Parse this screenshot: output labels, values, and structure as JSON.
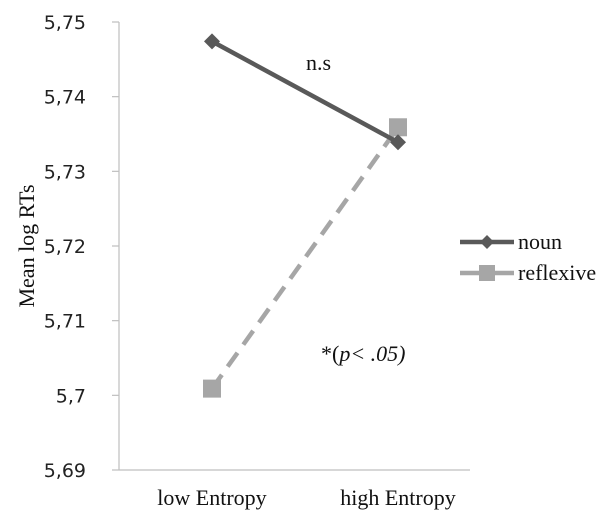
{
  "chart_data": {
    "type": "line",
    "categories": [
      "low Entropy",
      "high Entropy"
    ],
    "ylabel": "Mean log RTs",
    "ylim": [
      5.69,
      5.75
    ],
    "yticks": [
      5.69,
      5.7,
      5.71,
      5.72,
      5.73,
      5.74,
      5.75
    ],
    "ytick_labels": [
      "5,69",
      "5,7",
      "5,71",
      "5,72",
      "5,73",
      "5,74",
      "5,75"
    ],
    "grid": false,
    "legend_position": "right",
    "series": [
      {
        "name": "noun",
        "values": [
          5.7474,
          5.7339
        ],
        "color": "#595959",
        "marker": "diamond",
        "style": "solid"
      },
      {
        "name": "reflexive",
        "values": [
          5.7009,
          5.7359
        ],
        "color": "#a6a6a6",
        "marker": "square",
        "style": "dashed"
      }
    ],
    "annotations": {
      "noun_sig": "n.s",
      "reflexive_sig_prefix": "*(",
      "reflexive_sig_p": "p",
      "reflexive_sig_suffix": "< .05)"
    }
  }
}
